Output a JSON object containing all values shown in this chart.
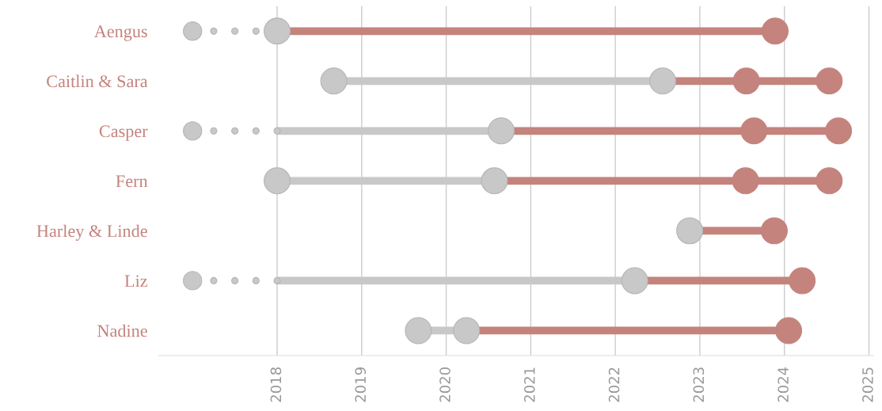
{
  "chart_data": {
    "type": "bubble",
    "orientation": "horizontal",
    "categories": [
      "Aengus",
      "Caitlin & Sara",
      "Casper",
      "Fern",
      "Harley & Linde",
      "Liz",
      "Nadine"
    ],
    "series": [
      {
        "color": "#c8c8c8",
        "sizes": [
          0.5,
          null,
          0.5,
          null,
          null,
          0.5,
          null
        ],
        "values": [
          2017,
          null,
          2017,
          null,
          null,
          2017,
          null
        ]
      },
      {
        "color": "#c8c8c8",
        "sizes": [
          0.06,
          null,
          0.06,
          null,
          null,
          0.06,
          null
        ],
        "values": [
          2017.25,
          null,
          2017.25,
          null,
          null,
          2017.25,
          null
        ]
      },
      {
        "color": "#c8c8c8",
        "sizes": [
          0.06,
          null,
          0.06,
          null,
          null,
          0.06,
          null
        ],
        "values": [
          2017.5,
          null,
          2017.5,
          null,
          null,
          2017.5,
          null
        ]
      },
      {
        "color": "#c8c8c8",
        "sizes": [
          0.06,
          null,
          0.06,
          null,
          null,
          0.06,
          null
        ],
        "values": [
          2017.75,
          null,
          2017.75,
          null,
          null,
          2017.75,
          null
        ]
      },
      {
        "color": "#c8c8c8",
        "sizes": [
          null,
          null,
          0.06,
          null,
          null,
          0.06,
          null
        ],
        "values": [
          null,
          null,
          2018,
          null,
          null,
          2018,
          null
        ]
      },
      {
        "color": "#c8c8c8",
        "sizes": [
          1,
          1,
          null,
          1,
          null,
          null,
          1
        ],
        "values": [
          2018,
          2018.67,
          null,
          2018,
          null,
          null,
          2019.67
        ]
      },
      {
        "type": "lollipop",
        "color": "#c8c8c8",
        "values": [
          null,
          2022.56,
          2020.65,
          2020.57,
          null,
          2022.23,
          2020.24
        ]
      },
      {
        "color": "#c8c8c8",
        "sizes": [
          null,
          null,
          null,
          null,
          1,
          null,
          null
        ],
        "values": [
          null,
          null,
          null,
          null,
          2022.88,
          null,
          null
        ]
      },
      {
        "type": "lollipop",
        "color": "#c4837d",
        "values": [
          2023.89,
          2024.53,
          2024.64,
          2024.53,
          2023.88,
          2024.21,
          2024.05
        ]
      },
      {
        "color": "#c4837d",
        "sizes": [
          null,
          1,
          1,
          1,
          null,
          null,
          null
        ],
        "values": [
          null,
          2023.55,
          2023.64,
          2023.54,
          null,
          null,
          null
        ]
      }
    ],
    "xlim": [
      2016.6,
      2025.05
    ],
    "xticks": [
      2018,
      2019,
      2020,
      2021,
      2022,
      2023,
      2024,
      2025
    ],
    "grid": "x",
    "marker": "circle"
  }
}
